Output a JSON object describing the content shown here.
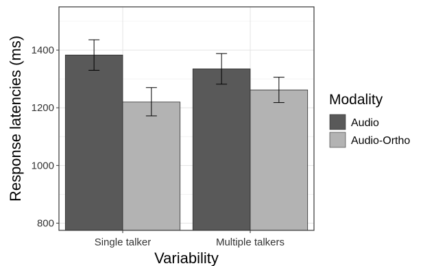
{
  "chart_data": {
    "type": "bar",
    "xlabel": "Variability",
    "ylabel": "Response latencies (ms)",
    "categories": [
      "Single talker",
      "Multiple talkers"
    ],
    "series": [
      {
        "name": "Audio",
        "color": "#595959",
        "values": [
          1383,
          1335
        ],
        "error_low": [
          1330,
          1282
        ],
        "error_high": [
          1436,
          1388
        ]
      },
      {
        "name": "Audio-Ortho",
        "color": "#b3b3b3",
        "values": [
          1220,
          1262
        ],
        "error_low": [
          1172,
          1218
        ],
        "error_high": [
          1270,
          1306
        ]
      }
    ],
    "ylim": [
      775,
      1550
    ],
    "yticks": [
      800,
      1000,
      1200,
      1400
    ],
    "grid": true,
    "legend": {
      "title": "Modality",
      "position": "right"
    }
  }
}
